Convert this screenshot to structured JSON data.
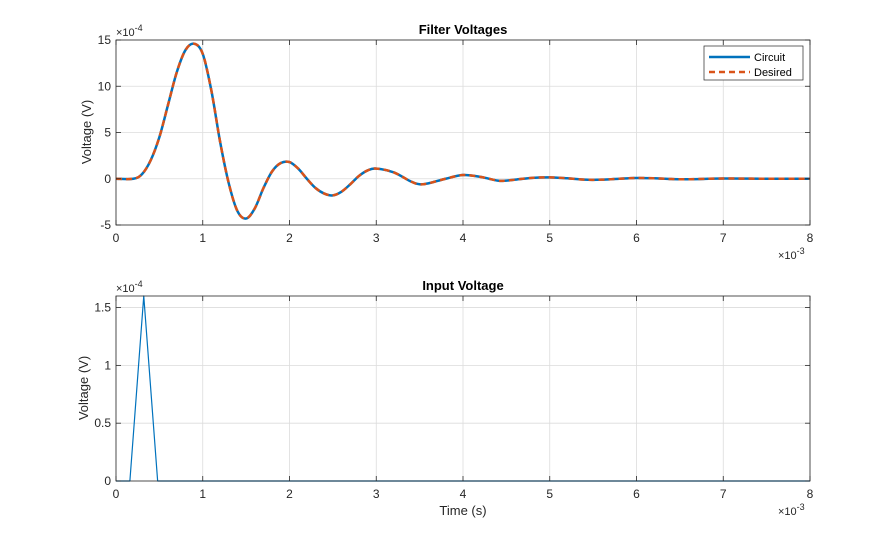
{
  "chart_data": [
    {
      "type": "line",
      "title": "Filter Voltages",
      "xlabel": "",
      "ylabel": "Voltage (V)",
      "xlim": [
        0,
        8
      ],
      "ylim": [
        -5,
        15
      ],
      "x_exponent_label": "×10",
      "x_exponent": "-3",
      "y_exponent_label": "×10",
      "y_exponent": "-4",
      "xticks": [
        "0",
        "1",
        "2",
        "3",
        "4",
        "5",
        "6",
        "7",
        "8"
      ],
      "yticks": [
        "-5",
        "0",
        "5",
        "10",
        "15"
      ],
      "grid": true,
      "legend_position": "top-right",
      "series": [
        {
          "name": "Circuit",
          "color": "#0072BD",
          "style": "solid",
          "x": [
            0,
            0.2,
            0.3,
            0.4,
            0.5,
            0.6,
            0.7,
            0.8,
            0.9,
            1.0,
            1.1,
            1.2,
            1.3,
            1.4,
            1.5,
            1.6,
            1.7,
            1.8,
            1.9,
            2.0,
            2.1,
            2.2,
            2.3,
            2.4,
            2.5,
            2.6,
            2.7,
            2.8,
            2.9,
            3.0,
            3.2,
            3.4,
            3.5,
            3.6,
            3.8,
            4.0,
            4.2,
            4.4,
            4.5,
            4.6,
            4.8,
            5.0,
            5.2,
            5.4,
            5.6,
            5.8,
            6.0,
            6.2,
            6.4,
            6.6,
            7.0,
            7.5,
            8.0
          ],
          "values": [
            0,
            0,
            0.5,
            2.0,
            4.5,
            8.0,
            11.5,
            13.9,
            14.6,
            13.5,
            9.5,
            4.0,
            -0.5,
            -3.5,
            -4.3,
            -3.2,
            -1.0,
            0.8,
            1.7,
            1.8,
            1.1,
            0.0,
            -1.0,
            -1.6,
            -1.8,
            -1.4,
            -0.6,
            0.3,
            0.9,
            1.1,
            0.7,
            -0.3,
            -0.6,
            -0.5,
            0.0,
            0.4,
            0.2,
            -0.2,
            -0.2,
            -0.1,
            0.1,
            0.15,
            0.05,
            -0.1,
            -0.1,
            0.0,
            0.08,
            0.05,
            -0.03,
            -0.05,
            0.02,
            0.0,
            0.0
          ]
        },
        {
          "name": "Desired",
          "color": "#D95319",
          "style": "dashed",
          "x": [
            0,
            0.2,
            0.3,
            0.4,
            0.5,
            0.6,
            0.7,
            0.8,
            0.9,
            1.0,
            1.1,
            1.2,
            1.3,
            1.4,
            1.5,
            1.6,
            1.7,
            1.8,
            1.9,
            2.0,
            2.1,
            2.2,
            2.3,
            2.4,
            2.5,
            2.6,
            2.7,
            2.8,
            2.9,
            3.0,
            3.2,
            3.4,
            3.5,
            3.6,
            3.8,
            4.0,
            4.2,
            4.4,
            4.5,
            4.6,
            4.8,
            5.0,
            5.2,
            5.4,
            5.6,
            5.8,
            6.0,
            6.2,
            6.4,
            6.6,
            7.0,
            7.5,
            8.0
          ],
          "values": [
            0,
            0,
            0.5,
            2.0,
            4.5,
            8.0,
            11.5,
            13.9,
            14.6,
            13.5,
            9.5,
            4.0,
            -0.5,
            -3.5,
            -4.3,
            -3.2,
            -1.0,
            0.8,
            1.7,
            1.8,
            1.1,
            0.0,
            -1.0,
            -1.6,
            -1.8,
            -1.4,
            -0.6,
            0.3,
            0.9,
            1.1,
            0.7,
            -0.3,
            -0.6,
            -0.5,
            0.0,
            0.4,
            0.2,
            -0.2,
            -0.2,
            -0.1,
            0.1,
            0.15,
            0.05,
            -0.1,
            -0.1,
            0.0,
            0.08,
            0.05,
            -0.03,
            -0.05,
            0.02,
            0.0,
            0.0
          ]
        }
      ]
    },
    {
      "type": "line",
      "title": "Input Voltage",
      "xlabel": "Time (s)",
      "ylabel": "Voltage (V)",
      "xlim": [
        0,
        8
      ],
      "ylim": [
        0,
        1.6
      ],
      "x_exponent_label": "×10",
      "x_exponent": "-3",
      "y_exponent_label": "×10",
      "y_exponent": "-4",
      "xticks": [
        "0",
        "1",
        "2",
        "3",
        "4",
        "5",
        "6",
        "7",
        "8"
      ],
      "yticks": [
        "0",
        "0.5",
        "1",
        "1.5"
      ],
      "grid": true,
      "series": [
        {
          "color": "#0072BD",
          "style": "solid",
          "x": [
            0,
            0.16,
            0.32,
            0.48,
            8.0
          ],
          "values": [
            0,
            0,
            1.6,
            0,
            0
          ]
        }
      ]
    }
  ]
}
